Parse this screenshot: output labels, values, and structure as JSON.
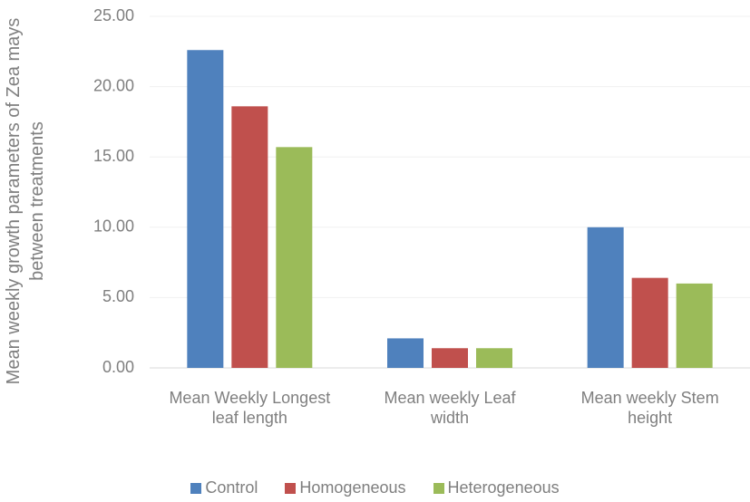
{
  "chart_data": {
    "type": "bar",
    "y_label": "Mean weekly growth parameters of Zea mays  between treatments",
    "categories": [
      "Mean Weekly Longest leaf length",
      "Mean weekly Leaf width",
      "Mean weekly Stem height"
    ],
    "series": [
      {
        "name": "Control",
        "color": "#4f81bd",
        "values": [
          22.6,
          2.1,
          10.0
        ]
      },
      {
        "name": "Homogeneous",
        "color": "#c0504d",
        "values": [
          18.6,
          1.4,
          6.4
        ]
      },
      {
        "name": "Heterogeneous",
        "color": "#9bbb59",
        "values": [
          15.7,
          1.4,
          6.0
        ]
      }
    ],
    "ylim": [
      0,
      25
    ],
    "yticks": [
      {
        "value": 0,
        "label": "0.00"
      },
      {
        "value": 5,
        "label": "5.00"
      },
      {
        "value": 10,
        "label": "10.00"
      },
      {
        "value": 15,
        "label": "15.00"
      },
      {
        "value": 20,
        "label": "20.00"
      },
      {
        "value": 25,
        "label": "25.00"
      }
    ],
    "grid": true,
    "legend": "bottom"
  }
}
